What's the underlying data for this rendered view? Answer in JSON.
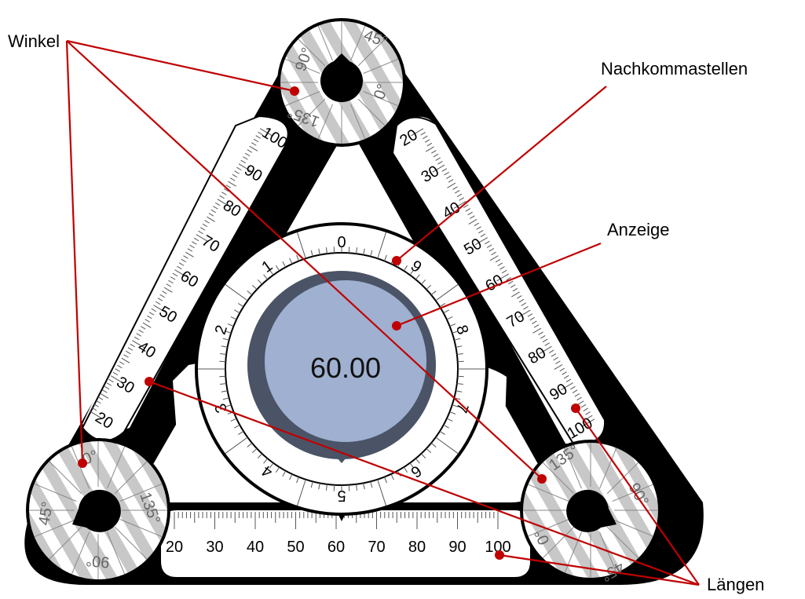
{
  "labels": {
    "winkel": "Winkel",
    "nachkommastellen": "Nachkommastellen",
    "anzeige": "Anzeige",
    "laengen": "Längen"
  },
  "display": {
    "value": "60.00",
    "face_color": "#9fb0d0",
    "ring_color": "#4a5466"
  },
  "decimal_dial": {
    "digits": [
      "0",
      "1",
      "2",
      "3",
      "4",
      "5",
      "6",
      "7",
      "8",
      "9"
    ]
  },
  "length_scale": {
    "labels": [
      "20",
      "30",
      "40",
      "50",
      "60",
      "70",
      "80",
      "90",
      "100"
    ]
  },
  "angle_wheels": {
    "labels": [
      "0°",
      "45°",
      "90°",
      "135°"
    ]
  },
  "colors": {
    "frame": "#000000",
    "leader": "#c00000",
    "stripe": "#c8c8c8"
  }
}
